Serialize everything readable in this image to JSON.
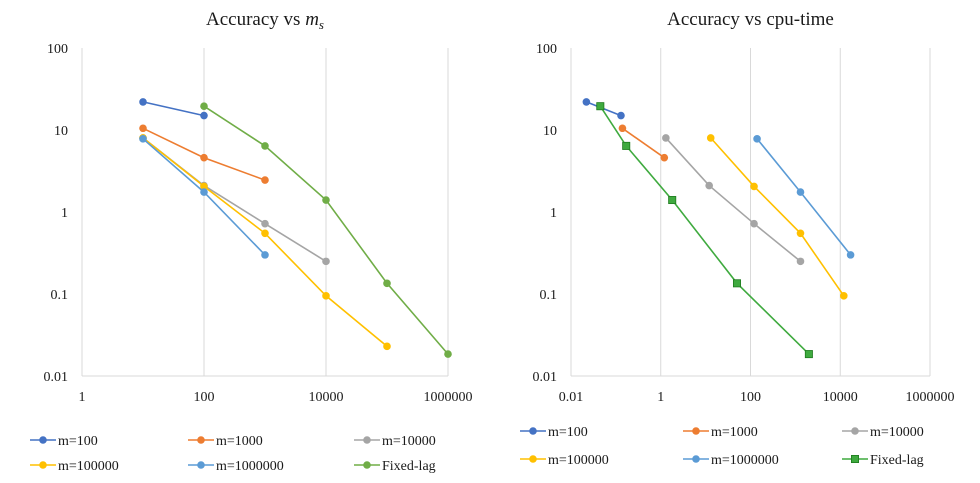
{
  "chart_data": [
    {
      "type": "line",
      "title": "Accuracy vs ",
      "title_var": "m",
      "title_sub": "s",
      "xscale": "log",
      "yscale": "log",
      "xlim": [
        1,
        1000000
      ],
      "ylim": [
        0.01,
        100
      ],
      "x_ticks": [
        1,
        100,
        10000,
        1000000
      ],
      "x_tick_labels": [
        "1",
        "100",
        "10000",
        "1000000"
      ],
      "y_ticks": [
        0.01,
        0.1,
        1,
        10,
        100
      ],
      "y_tick_labels": [
        "0.01",
        "0.1",
        "1",
        "10",
        "100"
      ],
      "grid": "vertical",
      "legend": "bottom",
      "series": [
        {
          "name": "m=100",
          "color": "#4472C4",
          "marker": "circle",
          "x": [
            10,
            100
          ],
          "y": [
            22,
            15
          ]
        },
        {
          "name": "m=1000",
          "color": "#ED7D31",
          "marker": "circle",
          "x": [
            10,
            100,
            1000
          ],
          "y": [
            10.5,
            4.6,
            2.45
          ]
        },
        {
          "name": "m=10000",
          "color": "#A5A5A5",
          "marker": "circle",
          "x": [
            10,
            100,
            1000,
            10000
          ],
          "y": [
            8,
            2.1,
            0.72,
            0.25
          ]
        },
        {
          "name": "m=100000",
          "color": "#FFC000",
          "marker": "circle",
          "x": [
            10,
            100,
            1000,
            10000,
            100000
          ],
          "y": [
            8,
            2.05,
            0.55,
            0.095,
            0.023
          ]
        },
        {
          "name": "m=1000000",
          "color": "#5B9BD5",
          "marker": "circle",
          "x": [
            10,
            100,
            1000
          ],
          "y": [
            7.8,
            1.75,
            0.3
          ]
        },
        {
          "name": "Fixed-lag",
          "color": "#70AD47",
          "marker": "circle",
          "x": [
            100,
            1000,
            10000,
            100000,
            1000000
          ],
          "y": [
            19.5,
            6.4,
            1.4,
            0.135,
            0.0185
          ]
        }
      ]
    },
    {
      "type": "line",
      "title": "Accuracy vs cpu-time",
      "xscale": "log",
      "yscale": "log",
      "xlim": [
        0.01,
        1000000
      ],
      "ylim": [
        0.01,
        100
      ],
      "x_ticks": [
        0.01,
        1,
        100,
        10000,
        1000000
      ],
      "x_tick_labels": [
        "0.01",
        "1",
        "100",
        "10000",
        "1000000"
      ],
      "y_ticks": [
        0.01,
        0.1,
        1,
        10,
        100
      ],
      "y_tick_labels": [
        "0.01",
        "0.1",
        "1",
        "10",
        "100"
      ],
      "grid": "vertical",
      "legend": "bottom",
      "series": [
        {
          "name": "m=100",
          "color": "#4472C4",
          "marker": "circle",
          "x": [
            0.022,
            0.13
          ],
          "y": [
            22,
            15
          ]
        },
        {
          "name": "m=1000",
          "color": "#ED7D31",
          "marker": "circle",
          "x": [
            0.14,
            1.2
          ],
          "y": [
            10.5,
            4.6
          ]
        },
        {
          "name": "m=10000",
          "color": "#A5A5A5",
          "marker": "circle",
          "x": [
            1.3,
            12,
            120,
            1300
          ],
          "y": [
            8,
            2.1,
            0.72,
            0.25
          ]
        },
        {
          "name": "m=100000",
          "color": "#FFC000",
          "marker": "circle",
          "x": [
            13,
            120,
            1300,
            12000
          ],
          "y": [
            8,
            2.05,
            0.55,
            0.095
          ]
        },
        {
          "name": "m=1000000",
          "color": "#5B9BD5",
          "marker": "circle",
          "x": [
            140,
            1300,
            17000
          ],
          "y": [
            7.8,
            1.75,
            0.3
          ]
        },
        {
          "name": "Fixed-lag",
          "color": "#3FAA3F",
          "marker": "square",
          "x": [
            0.045,
            0.17,
            1.8,
            50,
            2000
          ],
          "y": [
            19.5,
            6.4,
            1.4,
            0.135,
            0.0185
          ]
        }
      ]
    }
  ]
}
